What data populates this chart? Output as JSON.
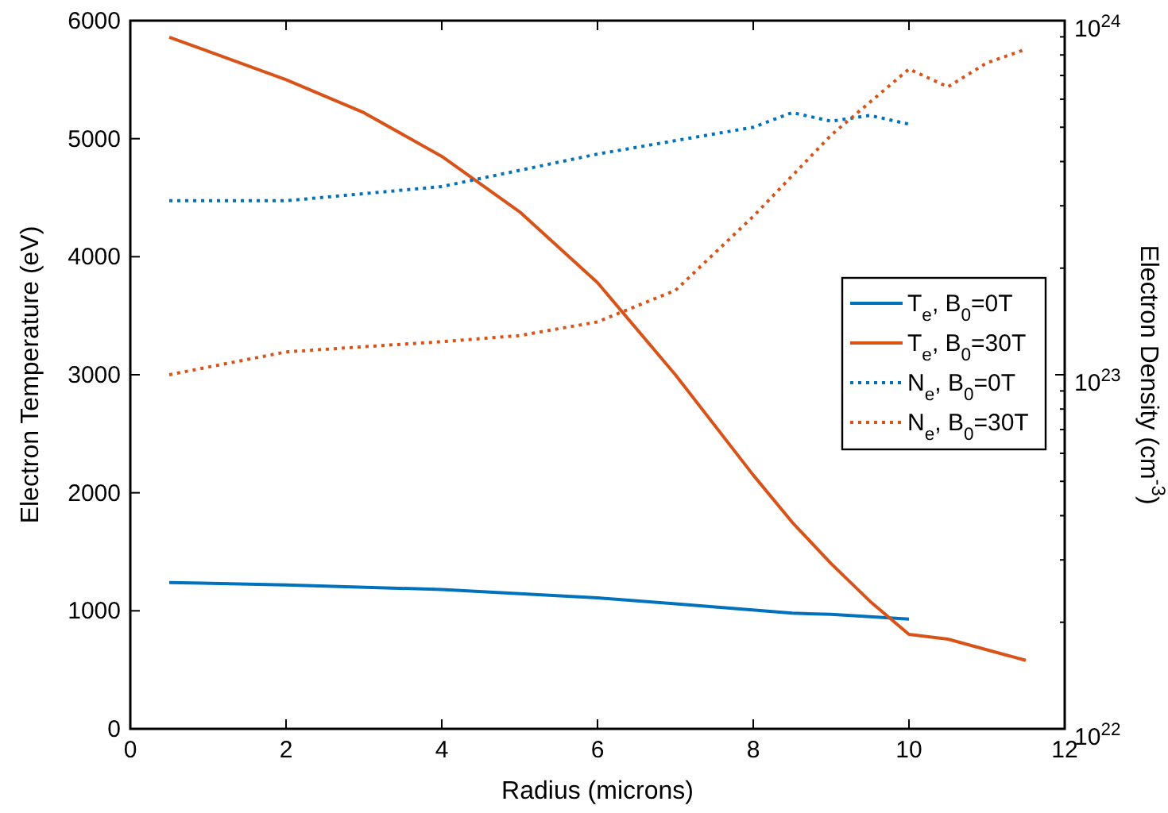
{
  "chart_data": {
    "type": "line",
    "xlabel": "Radius (microns)",
    "ylabel": "Electron Temperature (eV)",
    "y2label": "Electron Density (cm$^{-3}$)",
    "xlim": [
      0,
      12
    ],
    "xticks": [
      0,
      2,
      4,
      6,
      8,
      10,
      12
    ],
    "ylim": [
      0,
      6000
    ],
    "yticks": [
      0,
      1000,
      2000,
      3000,
      4000,
      5000,
      6000
    ],
    "y2lim": [
      1e+22,
      1e+24
    ],
    "log": "y2",
    "y2ticks": [
      {
        "value": 1e+22,
        "label": "10$^{22}$"
      },
      {
        "value": 2e+22,
        "label": null
      },
      {
        "value": 3e+22,
        "label": null
      },
      {
        "value": 4e+22,
        "label": null
      },
      {
        "value": 5e+22,
        "label": null
      },
      {
        "value": 6e+22,
        "label": null
      },
      {
        "value": 7e+22,
        "label": null
      },
      {
        "value": 8e+22,
        "label": null
      },
      {
        "value": 9e+22,
        "label": null
      },
      {
        "value": 1e+23,
        "label": "10$^{23}$"
      },
      {
        "value": 2e+23,
        "label": null
      },
      {
        "value": 3e+23,
        "label": null
      },
      {
        "value": 4e+23,
        "label": null
      },
      {
        "value": 5e+23,
        "label": null
      },
      {
        "value": 6e+23,
        "label": null
      },
      {
        "value": 7e+23,
        "label": null
      },
      {
        "value": 8e+23,
        "label": null
      },
      {
        "value": 9e+23,
        "label": null
      },
      {
        "value": 1e+24,
        "label": "10$^{24}$"
      }
    ],
    "grid": false,
    "legend": "right",
    "series": [
      {
        "name": "T$_{e}$, B$_{0}$=0T",
        "color": "#0072bd",
        "line_style": "solid",
        "x": [
          0.5,
          2,
          4,
          6,
          7,
          8.5,
          9,
          10
        ],
        "values": [
          1240,
          1220,
          1180,
          1110,
          1060,
          980,
          970,
          930
        ]
      },
      {
        "name": "T$_{e}$, B$_{0}$=30T",
        "color": "#d95319",
        "line_style": "solid",
        "x": [
          0.5,
          1,
          2,
          3,
          4,
          5,
          6,
          7,
          8,
          8.5,
          9,
          9.5,
          10,
          10.5,
          11.5
        ],
        "values": [
          5860,
          5740,
          5500,
          5220,
          4850,
          4380,
          3780,
          3000,
          2150,
          1750,
          1400,
          1080,
          800,
          760,
          580
        ]
      },
      {
        "name": "N$_{e}$, B$_{0}$=0T",
        "color": "#0072bd",
        "line_style": "dotted",
        "axis": "y2",
        "x": [
          0.5,
          2,
          4,
          6,
          8,
          8.5,
          9,
          9.5,
          10
        ],
        "values": [
          3.1e+23,
          3.1e+23,
          3.4e+23,
          4.2e+23,
          5e+23,
          5.5e+23,
          5.2e+23,
          5.4e+23,
          5.1e+23
        ]
      },
      {
        "name": "N$_{e}$, B$_{0}$=30T",
        "color": "#d95319",
        "line_style": "dotted",
        "axis": "y2",
        "x": [
          0.5,
          2,
          3,
          4,
          5,
          6,
          7,
          8,
          9,
          10,
          10.5,
          11,
          11.5
        ],
        "values": [
          1e+23,
          1.16e+23,
          1.2e+23,
          1.24e+23,
          1.29e+23,
          1.41e+23,
          1.73e+23,
          2.8e+23,
          4.75e+23,
          7.3e+23,
          6.5e+23,
          7.6e+23,
          8.3e+23
        ]
      }
    ]
  }
}
